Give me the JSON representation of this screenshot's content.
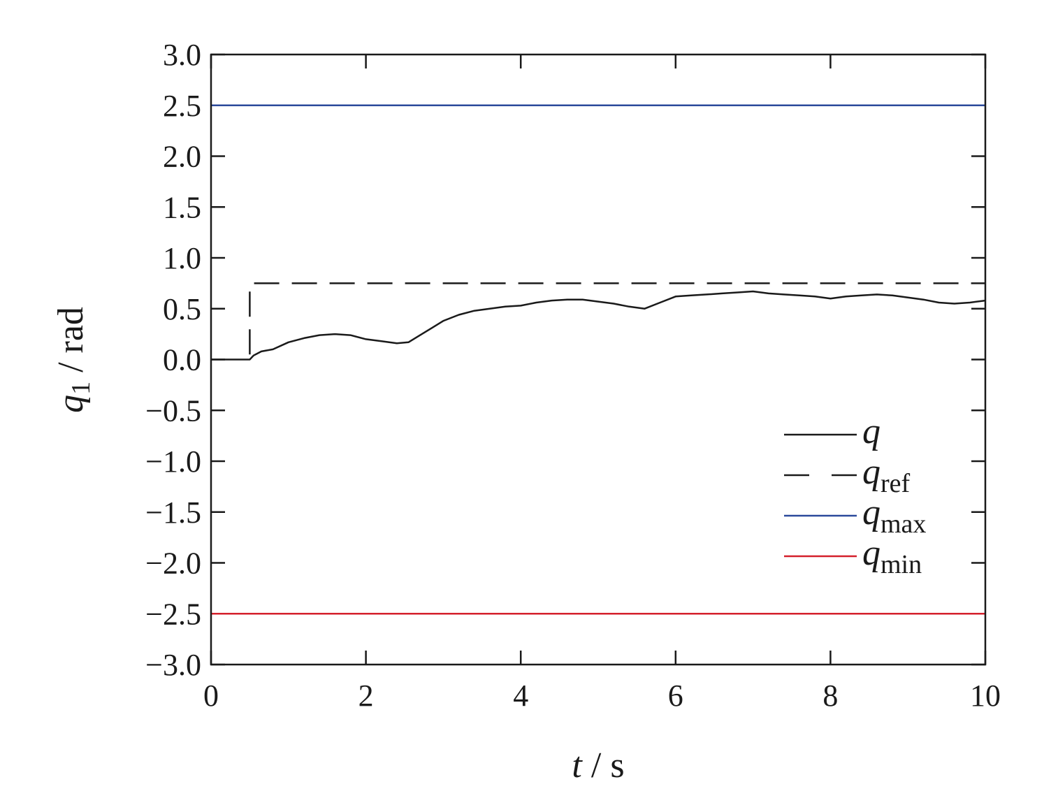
{
  "chart_data": {
    "type": "line",
    "xlabel": {
      "var": "t",
      "sep": " / ",
      "unit": "s"
    },
    "ylabel": {
      "var": "q",
      "sub": "1",
      "sep": " / ",
      "unit": "rad"
    },
    "xlim": [
      0,
      10
    ],
    "ylim": [
      -3.0,
      3.0
    ],
    "x_ticks": [
      0,
      2,
      4,
      6,
      8,
      10
    ],
    "x_tick_labels": [
      "0",
      "2",
      "4",
      "6",
      "8",
      "10"
    ],
    "y_ticks": [
      3.0,
      2.5,
      2.0,
      1.5,
      1.0,
      0.5,
      0.0,
      -0.5,
      -1.0,
      -1.5,
      -2.0,
      -2.5,
      -3.0
    ],
    "y_tick_labels": [
      "3.0",
      "2.5",
      "2.0",
      "1.5",
      "1.0",
      "0.5",
      "0.0",
      "−0.5",
      "−1.0",
      "−1.5",
      "−2.0",
      "−2.5",
      "−3.0"
    ],
    "grid": false,
    "legend_position": "bottom-right",
    "series": [
      {
        "name": "q",
        "legend_main": "q",
        "legend_sub": "",
        "color": "#1a1a1a",
        "style": "solid",
        "x": [
          0,
          0.5,
          0.55,
          0.65,
          0.8,
          1.0,
          1.2,
          1.4,
          1.6,
          1.8,
          2.0,
          2.2,
          2.4,
          2.55,
          2.7,
          2.85,
          3.0,
          3.2,
          3.4,
          3.6,
          3.8,
          4.0,
          4.2,
          4.4,
          4.6,
          4.8,
          5.0,
          5.2,
          5.4,
          5.6,
          5.8,
          6.0,
          6.2,
          6.4,
          6.6,
          6.8,
          7.0,
          7.2,
          7.4,
          7.6,
          7.8,
          8.0,
          8.2,
          8.4,
          8.6,
          8.8,
          9.0,
          9.2,
          9.4,
          9.6,
          9.8,
          10.0
        ],
        "y": [
          0.0,
          0.0,
          0.04,
          0.08,
          0.1,
          0.17,
          0.21,
          0.24,
          0.25,
          0.24,
          0.2,
          0.18,
          0.16,
          0.17,
          0.24,
          0.31,
          0.38,
          0.44,
          0.48,
          0.5,
          0.52,
          0.53,
          0.56,
          0.58,
          0.59,
          0.59,
          0.57,
          0.55,
          0.52,
          0.5,
          0.56,
          0.62,
          0.63,
          0.64,
          0.65,
          0.66,
          0.67,
          0.65,
          0.64,
          0.63,
          0.62,
          0.6,
          0.62,
          0.63,
          0.64,
          0.63,
          0.61,
          0.59,
          0.56,
          0.55,
          0.56,
          0.58
        ]
      },
      {
        "name": "q_ref",
        "legend_main": "q",
        "legend_sub": "ref",
        "color": "#1a1a1a",
        "style": "dashed",
        "x": [
          0.5,
          0.5,
          10
        ],
        "y": [
          0.05,
          0.75,
          0.75
        ]
      },
      {
        "name": "q_max",
        "legend_main": "q",
        "legend_sub": "max",
        "color": "#2b4a9b",
        "style": "solid",
        "x": [
          0,
          10
        ],
        "y": [
          2.5,
          2.5
        ]
      },
      {
        "name": "q_min",
        "legend_main": "q",
        "legend_sub": "min",
        "color": "#d4202c",
        "style": "solid",
        "x": [
          0,
          10
        ],
        "y": [
          -2.5,
          -2.5
        ]
      }
    ]
  }
}
